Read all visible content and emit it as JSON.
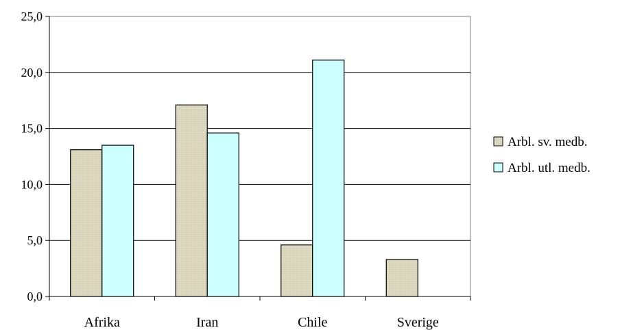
{
  "chart_data": {
    "type": "bar",
    "categories": [
      "Afrika",
      "Iran",
      "Chile",
      "Sverige"
    ],
    "series": [
      {
        "name": "Arbl. sv. medb.",
        "values": [
          13.1,
          17.1,
          4.6,
          3.3
        ],
        "color": "#ddd8c0"
      },
      {
        "name": "Arbl. utl. medb.",
        "values": [
          13.5,
          14.6,
          21.1,
          null
        ],
        "color": "#ccffff"
      }
    ],
    "y_ticks": [
      "0,0",
      "5,0",
      "10,0",
      "15,0",
      "20,0",
      "25,0"
    ],
    "ylim": [
      0,
      25
    ],
    "grid": true,
    "legend": "right"
  }
}
